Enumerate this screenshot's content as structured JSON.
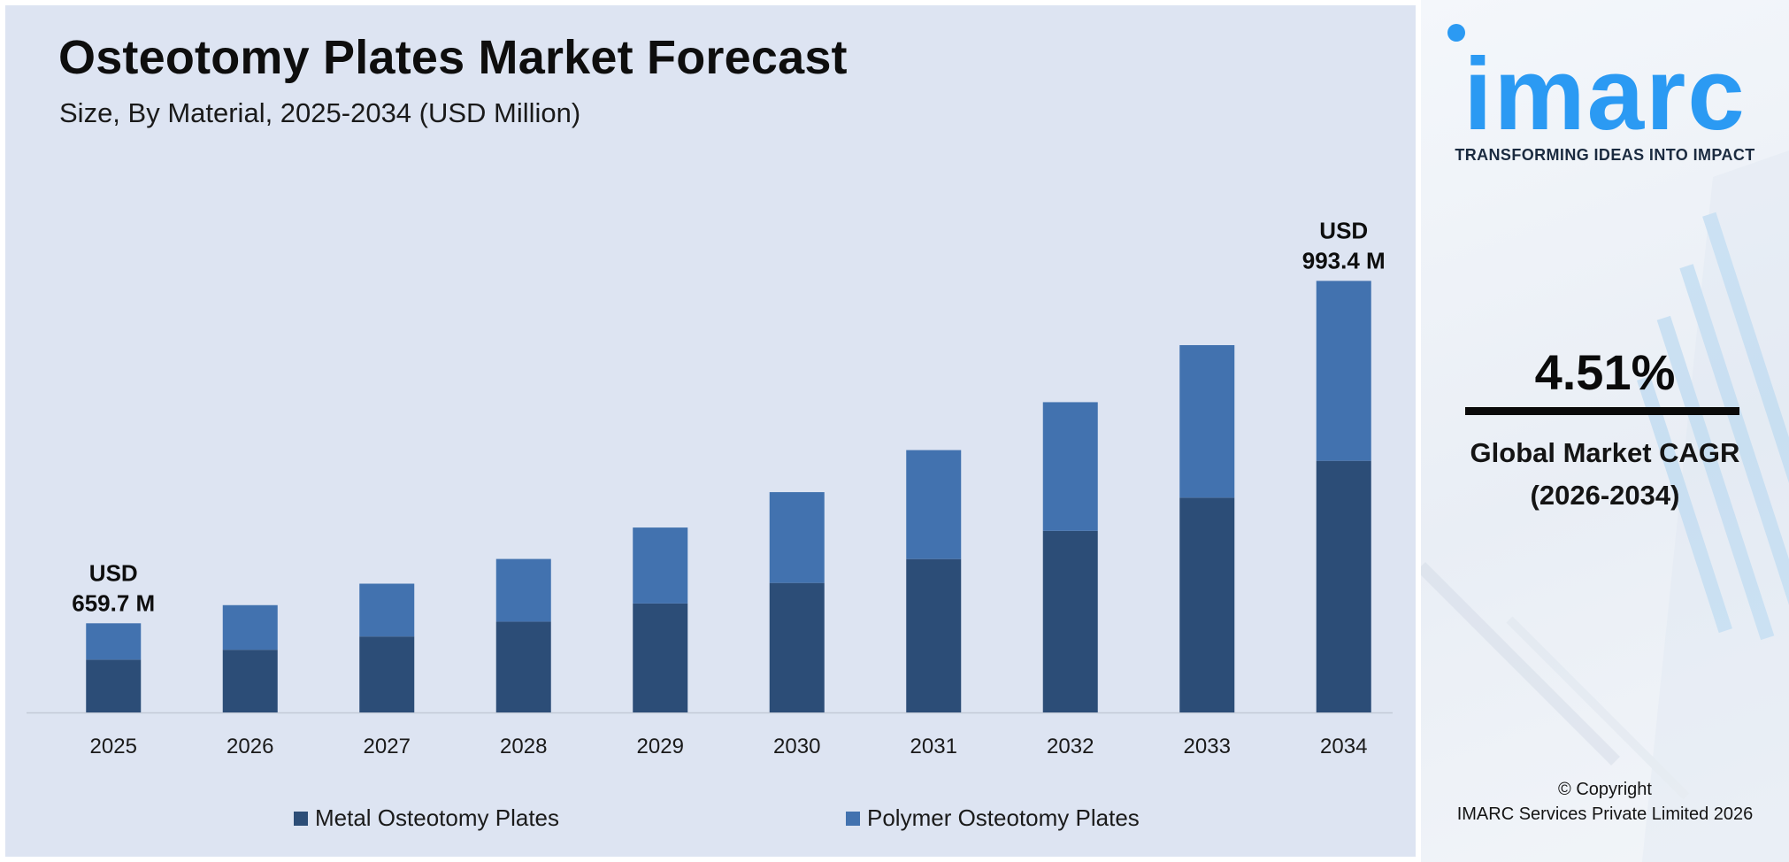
{
  "chart_data": {
    "type": "bar",
    "stacked": true,
    "title": "Osteotomy Plates Market Forecast",
    "subtitle": "Size, By Material, 2025-2034 (USD Million)",
    "categories": [
      "2025",
      "2026",
      "2027",
      "2028",
      "2029",
      "2030",
      "2031",
      "2032",
      "2033",
      "2034"
    ],
    "series": [
      {
        "name": "Metal Osteotomy Plates",
        "color": "#2c4d77",
        "values": [
          63.7,
          75.6,
          91.6,
          109.5,
          131.4,
          156.2,
          185.0,
          219.0,
          259.0,
          303.5
        ]
      },
      {
        "name": "Polymer Osteotomy Plates",
        "color": "#4272af",
        "values": [
          43.8,
          53.8,
          63.7,
          75.6,
          91.6,
          109.5,
          131.4,
          155.2,
          184.0,
          217.0
        ]
      }
    ],
    "annotations": [
      {
        "category": "2025",
        "line1": "USD",
        "line2": "659.7 M"
      },
      {
        "category": "2034",
        "line1": "USD",
        "line2": "993.4 M"
      }
    ],
    "ylim": [
      0,
      570
    ],
    "grid": false,
    "legend_position": "bottom"
  },
  "side": {
    "logo": "imarc",
    "tagline": "TRANSFORMING IDEAS INTO IMPACT",
    "cagr_value": "4.51%",
    "cagr_label_line1": "Global Market CAGR",
    "cagr_label_line2": "(2026-2034)",
    "copyright_line1": "© Copyright",
    "copyright_line2": "IMARC Services Private Limited 2026"
  }
}
